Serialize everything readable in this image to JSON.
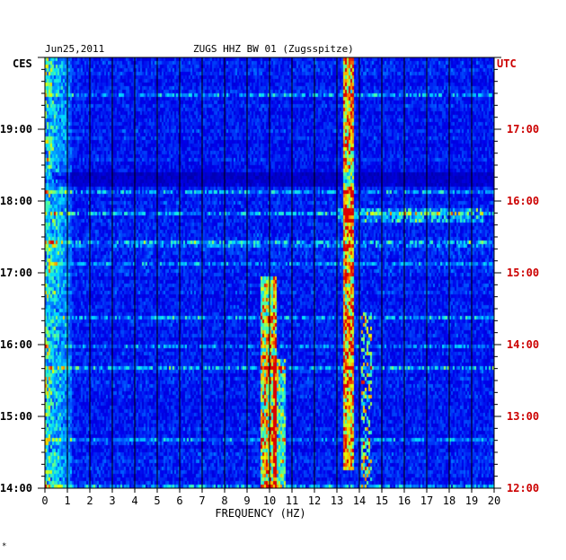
{
  "header": {
    "date": "Jun25,2011",
    "station": "ZUGS HHZ BW 01 (Zugsspitze)",
    "left_tz": "CES",
    "right_tz": "UTC"
  },
  "footer_mark": "*",
  "chart_data": {
    "type": "heatmap",
    "title": "ZUGS HHZ BW 01 (Zugsspitze)",
    "subtitle": "Jun25,2011",
    "xlabel": "FREQUENCY (HZ)",
    "xlim": [
      0,
      20
    ],
    "x_ticks": [
      "0",
      "1",
      "2",
      "3",
      "4",
      "5",
      "6",
      "7",
      "8",
      "9",
      "10",
      "11",
      "12",
      "13",
      "14",
      "15",
      "16",
      "17",
      "18",
      "19",
      "20"
    ],
    "y_left_label": "CES",
    "y_right_label": "UTC",
    "y_left_ticks": [
      "19:00",
      "18:00",
      "17:00",
      "16:00",
      "15:00",
      "14:00"
    ],
    "y_right_ticks": [
      "17:00",
      "16:00",
      "15:00",
      "14:00",
      "13:00",
      "12:00"
    ],
    "y_tick_values_hours": [
      5,
      4,
      3,
      2,
      1,
      0
    ],
    "time_span_hours": 6,
    "grid": true,
    "colors": {
      "background": "#0000c8",
      "grid": "#000000",
      "left_axis_text": "#000000",
      "right_axis_text": "#cc0000"
    },
    "strong_bands_hz": [
      {
        "center": 0.3,
        "description": "low-frequency noise band"
      },
      {
        "center": 9.9,
        "description": "strong band 14:00-17:00 CES"
      },
      {
        "center": 13.5,
        "description": "persistent band"
      },
      {
        "center": 14.3,
        "description": "band 14:00-16:30 CES"
      }
    ]
  }
}
